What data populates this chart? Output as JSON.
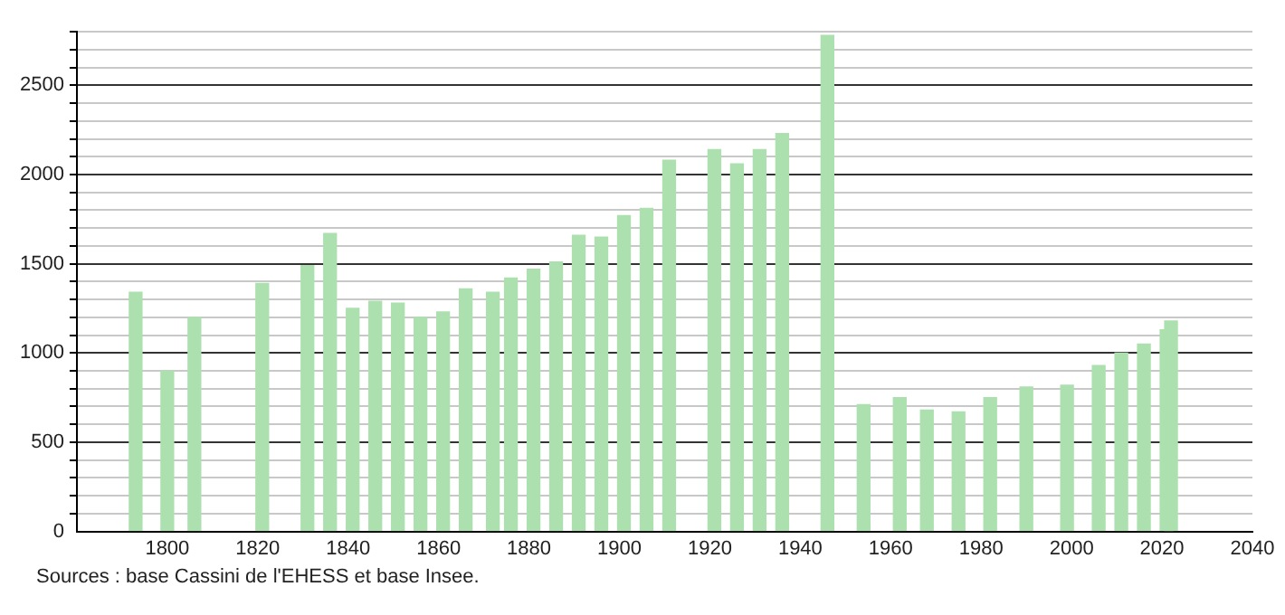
{
  "chart_data": {
    "type": "bar",
    "x": [
      1793,
      1800,
      1806,
      1821,
      1831,
      1836,
      1841,
      1846,
      1851,
      1856,
      1861,
      1866,
      1872,
      1876,
      1881,
      1886,
      1891,
      1896,
      1901,
      1906,
      1911,
      1921,
      1926,
      1931,
      1936,
      1946,
      1954,
      1962,
      1968,
      1975,
      1982,
      1990,
      1999,
      2006,
      2011,
      2016,
      2021,
      2022
    ],
    "values": [
      1340,
      900,
      1200,
      1390,
      1490,
      1670,
      1250,
      1290,
      1280,
      1200,
      1230,
      1360,
      1340,
      1420,
      1470,
      1510,
      1660,
      1650,
      1770,
      1810,
      2080,
      2140,
      2060,
      2140,
      2230,
      2780,
      710,
      750,
      680,
      670,
      750,
      810,
      820,
      930,
      1000,
      1050,
      1130,
      1180
    ],
    "color": "#ace1af",
    "xlim": [
      1780,
      2040
    ],
    "xticks": [
      1800,
      1820,
      1840,
      1860,
      1880,
      1900,
      1920,
      1940,
      1960,
      1980,
      2000,
      2020,
      2040
    ],
    "ylim": [
      0,
      2800
    ],
    "yticks": [
      0,
      {
        "value": 100,
        "label": null
      },
      {
        "value": 200,
        "label": null
      },
      {
        "value": 300,
        "label": null
      },
      {
        "value": 400,
        "label": null
      },
      500,
      {
        "value": 600,
        "label": null
      },
      {
        "value": 700,
        "label": null
      },
      {
        "value": 800,
        "label": null
      },
      {
        "value": 900,
        "label": null
      },
      1000,
      {
        "value": 1100,
        "label": null
      },
      {
        "value": 1200,
        "label": null
      },
      {
        "value": 1300,
        "label": null
      },
      {
        "value": 1400,
        "label": null
      },
      1500,
      {
        "value": 1600,
        "label": null
      },
      {
        "value": 1700,
        "label": null
      },
      {
        "value": 1800,
        "label": null
      },
      {
        "value": 1900,
        "label": null
      },
      2000,
      {
        "value": 2100,
        "label": null
      },
      {
        "value": 2200,
        "label": null
      },
      {
        "value": 2300,
        "label": null
      },
      {
        "value": 2400,
        "label": null
      },
      2500,
      {
        "value": 2600,
        "label": null
      },
      {
        "value": 2700,
        "label": null
      },
      {
        "value": 2800,
        "label": null
      }
    ],
    "grid": "y",
    "annotations": [
      "Sources : base Cassini de l'EHESS et base Insee."
    ]
  }
}
